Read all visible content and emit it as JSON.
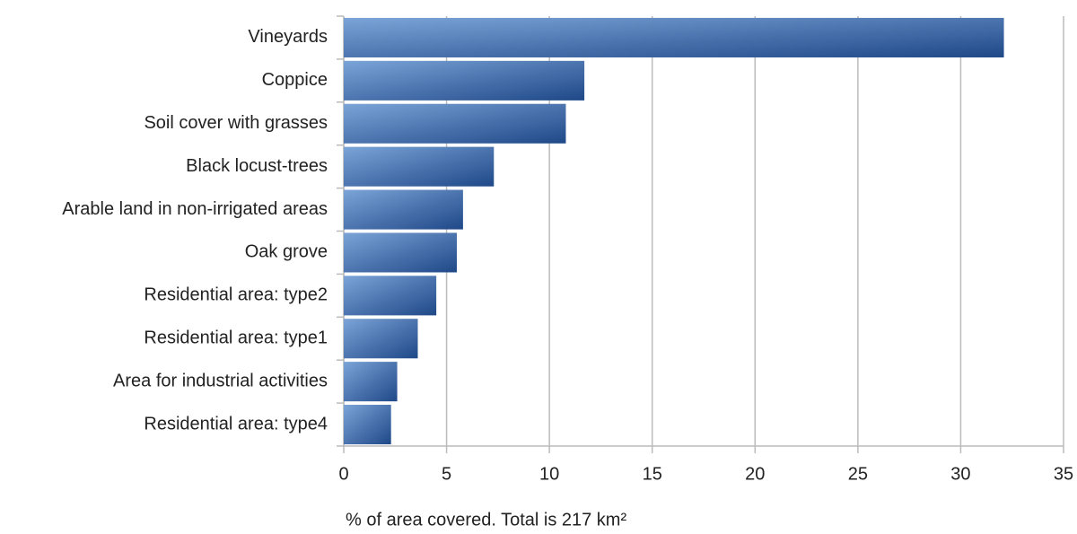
{
  "chart_data": {
    "type": "hbar",
    "categories": [
      "Vineyards",
      "Coppice",
      "Soil cover with grasses",
      "Black locust-trees",
      "Arable land in non-irrigated areas",
      "Oak grove",
      "Residential area: type2",
      "Residential area: type1",
      "Area for industrial activities",
      "Residential area: type4"
    ],
    "values": [
      32.1,
      11.7,
      10.8,
      7.3,
      5.8,
      5.5,
      4.5,
      3.6,
      2.6,
      2.3
    ],
    "color": [
      "#7ba4d8",
      "#1f4888"
    ],
    "xlabel": "%  of area covered. Total is 217 km²",
    "xlim": [
      0,
      35
    ],
    "xticks": [
      0,
      5,
      10,
      15,
      20,
      25,
      30,
      35
    ],
    "grid": true
  }
}
